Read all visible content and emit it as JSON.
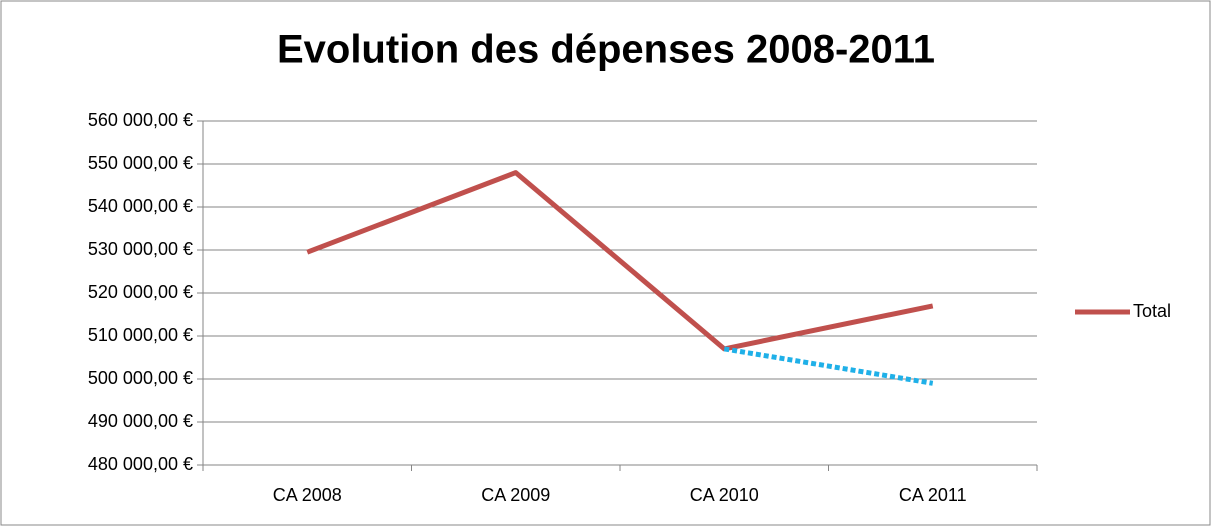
{
  "chart_data": {
    "type": "line",
    "title": "Evolution des dépenses 2008-2011",
    "categories": [
      "CA 2008",
      "CA 2009",
      "CA 2010",
      "CA 2011"
    ],
    "series": [
      {
        "name": "Total",
        "color": "#c0504d",
        "values": [
          529500,
          548000,
          507000,
          517000
        ]
      },
      {
        "color": "#1fb0e8",
        "line_style": "dotted",
        "values": [
          null,
          null,
          507000,
          499000
        ]
      }
    ],
    "ylim": [
      480000,
      560000
    ],
    "yticks": [
      {
        "value": 480000,
        "label": "480 000,00 €"
      },
      {
        "value": 490000,
        "label": "490 000,00 €"
      },
      {
        "value": 500000,
        "label": "500 000,00 €"
      },
      {
        "value": 510000,
        "label": "510 000,00 €"
      },
      {
        "value": 520000,
        "label": "520 000,00 €"
      },
      {
        "value": 530000,
        "label": "530 000,00 €"
      },
      {
        "value": 540000,
        "label": "540 000,00 €"
      },
      {
        "value": 550000,
        "label": "550 000,00 €"
      },
      {
        "value": 560000,
        "label": "560 000,00 €"
      }
    ],
    "grid": true,
    "legend": "right"
  }
}
